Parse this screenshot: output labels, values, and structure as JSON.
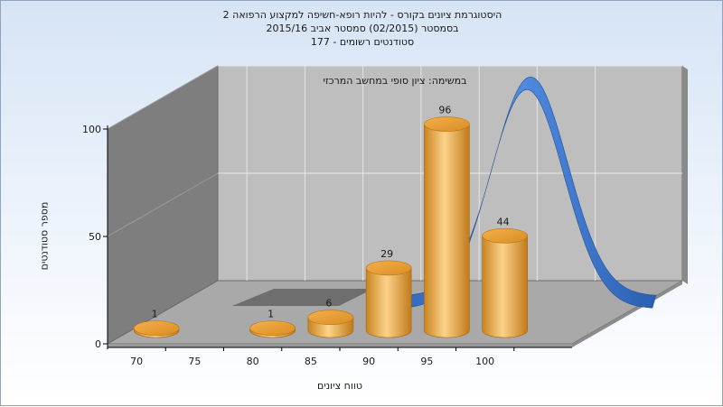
{
  "chart_data": {
    "type": "bar",
    "title_lines": [
      "היסטוגרמת ציונים בקורס - להיות רופא-חשיפה למקצוע הרפואה 2",
      "בסמסטר  (02/2015)  סמסטר אביב  2015/16",
      "סטודנטים רשומים - 177"
    ],
    "annotation": "במשימה: ציון סופי במחשב המרכזי",
    "xlabel": "טווח ציונים",
    "ylabel": "מספר סטודנטים",
    "x_ticks": [
      "70",
      "75",
      "80",
      "85",
      "90",
      "95",
      "100"
    ],
    "y_ticks": [
      "0",
      "50",
      "100"
    ],
    "ylim": [
      0,
      100
    ],
    "bars": [
      {
        "x": 70,
        "value": 1,
        "label": "1"
      },
      {
        "x": 80,
        "value": 1,
        "label": "1"
      },
      {
        "x": 85,
        "value": 6,
        "label": "6"
      },
      {
        "x": 90,
        "value": 29,
        "label": "29"
      },
      {
        "x": 95,
        "value": 96,
        "label": "96"
      },
      {
        "x": 100,
        "value": 44,
        "label": "44"
      }
    ],
    "curve_type": "normal-distribution",
    "grid": true,
    "colors": {
      "bar": "#e8a43a",
      "bar_light": "#fbd58a",
      "bar_dark": "#b57312",
      "curve": "#2f6cc7",
      "wall": "#bebebe",
      "left_wall": "#7e7e7e",
      "floor": "#a9a9a9",
      "frame": "#6b6b6b"
    }
  }
}
